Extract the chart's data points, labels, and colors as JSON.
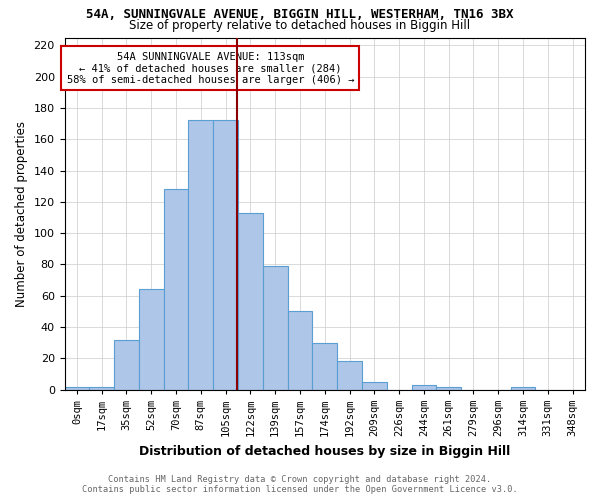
{
  "title_line1": "54A, SUNNINGVALE AVENUE, BIGGIN HILL, WESTERHAM, TN16 3BX",
  "title_line2": "Size of property relative to detached houses in Biggin Hill",
  "xlabel": "Distribution of detached houses by size in Biggin Hill",
  "ylabel": "Number of detached properties",
  "bin_labels": [
    "0sqm",
    "17sqm",
    "35sqm",
    "52sqm",
    "70sqm",
    "87sqm",
    "105sqm",
    "122sqm",
    "139sqm",
    "157sqm",
    "174sqm",
    "192sqm",
    "209sqm",
    "226sqm",
    "244sqm",
    "261sqm",
    "279sqm",
    "296sqm",
    "314sqm",
    "331sqm",
    "348sqm"
  ],
  "bar_heights": [
    2,
    2,
    32,
    64,
    128,
    172,
    172,
    113,
    79,
    50,
    30,
    18,
    5,
    0,
    3,
    2,
    0,
    0,
    2,
    0,
    0
  ],
  "bar_color": "#aec6e8",
  "bar_edge_color": "#5a9fd4",
  "vline_color": "#8b0000",
  "annotation_text": "54A SUNNINGVALE AVENUE: 113sqm\n← 41% of detached houses are smaller (284)\n58% of semi-detached houses are larger (406) →",
  "annotation_box_color": "#ffffff",
  "annotation_box_edge": "#cc0000",
  "ylim": [
    0,
    225
  ],
  "yticks": [
    0,
    20,
    40,
    60,
    80,
    100,
    120,
    140,
    160,
    180,
    200,
    220
  ],
  "footer_line1": "Contains HM Land Registry data © Crown copyright and database right 2024.",
  "footer_line2": "Contains public sector information licensed under the Open Government Licence v3.0.",
  "background_color": "#ffffff",
  "grid_color": "#cccccc"
}
